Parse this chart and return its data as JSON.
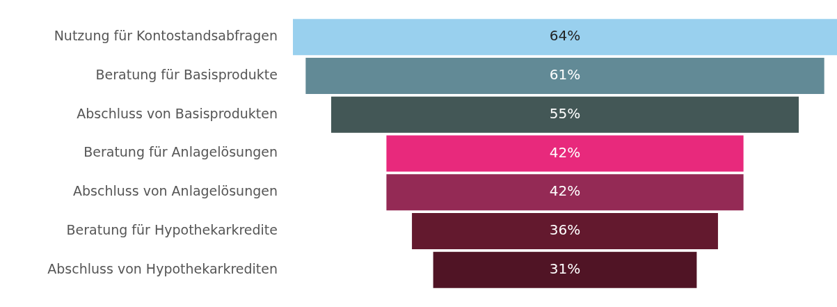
{
  "chart_data": {
    "type": "other",
    "categories": [
      "Nutzung für Kontostandsabfragen",
      "Beratung für Basisprodukte",
      "Abschluss von Basisprodukten",
      "Beratung für Anlagelösungen",
      "Abschluss von Anlagelösungen",
      "Beratung für Hypothekarkredite",
      "Abschluss von Hypothekarkrediten"
    ],
    "values": [
      64,
      61,
      55,
      42,
      42,
      36,
      31
    ],
    "value_labels": [
      "64%",
      "61%",
      "55%",
      "42%",
      "42%",
      "36%",
      "31%"
    ],
    "colors": [
      "#99d0ee",
      "#628a96",
      "#435756",
      "#e8297c",
      "#942a55",
      "#63192e",
      "#501425"
    ]
  }
}
